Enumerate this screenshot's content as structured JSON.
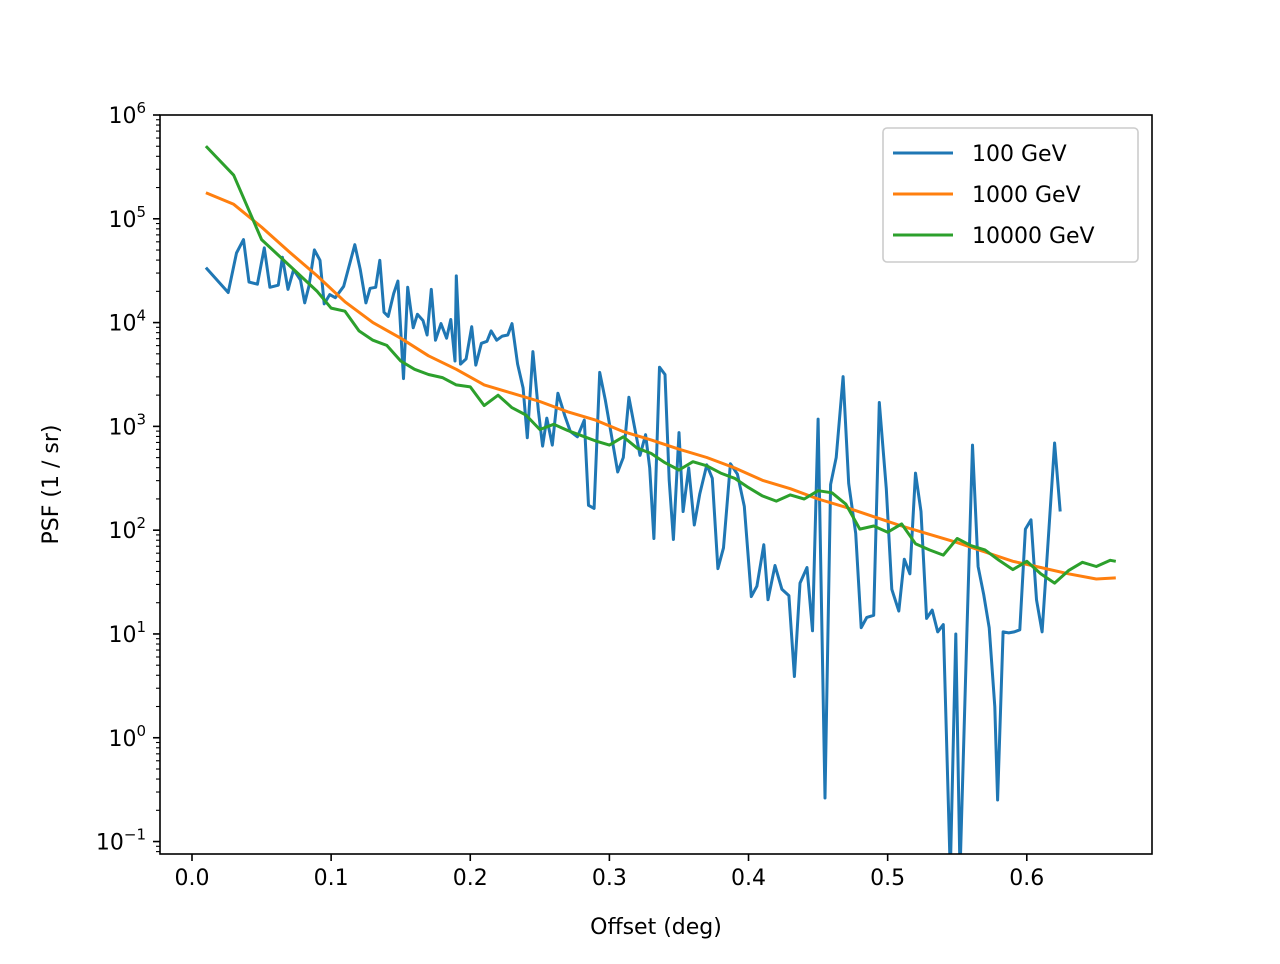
{
  "chart_data": {
    "type": "line",
    "title": "",
    "xlabel": "Offset (deg)",
    "ylabel": "PSF (1 / sr)",
    "xlim": [
      -0.023,
      0.69
    ],
    "ylim_log10": [
      -1.12,
      6.0
    ],
    "yscale": "log",
    "grid": false,
    "legend": "top-right",
    "x_ticks": [
      {
        "value": 0.0,
        "label": "0.0"
      },
      {
        "value": 0.1,
        "label": "0.1"
      },
      {
        "value": 0.2,
        "label": "0.2"
      },
      {
        "value": 0.3,
        "label": "0.3"
      },
      {
        "value": 0.4,
        "label": "0.4"
      },
      {
        "value": 0.5,
        "label": "0.5"
      },
      {
        "value": 0.6,
        "label": "0.6"
      }
    ],
    "y_ticks": [
      {
        "exp": 6,
        "base": "10",
        "sup": "6"
      },
      {
        "exp": 5,
        "base": "10",
        "sup": "5"
      },
      {
        "exp": 4,
        "base": "10",
        "sup": "4"
      },
      {
        "exp": 3,
        "base": "10",
        "sup": "3"
      },
      {
        "exp": 2,
        "base": "10",
        "sup": "2"
      },
      {
        "exp": 1,
        "base": "10",
        "sup": "1"
      },
      {
        "exp": 0,
        "base": "10",
        "sup": "0"
      },
      {
        "exp": -1,
        "base": "10",
        "sup": "−1"
      }
    ],
    "series": [
      {
        "name": "100 GeV",
        "color": "#1f77b4",
        "points": [
          [
            0.01,
            4.53
          ],
          [
            0.026,
            4.29
          ],
          [
            0.032,
            4.67
          ],
          [
            0.037,
            4.8
          ],
          [
            0.041,
            4.39
          ],
          [
            0.047,
            4.37
          ],
          [
            0.052,
            4.72
          ],
          [
            0.056,
            4.34
          ],
          [
            0.062,
            4.36
          ],
          [
            0.065,
            4.63
          ],
          [
            0.069,
            4.32
          ],
          [
            0.073,
            4.51
          ],
          [
            0.078,
            4.41
          ],
          [
            0.081,
            4.19
          ],
          [
            0.084,
            4.35
          ],
          [
            0.088,
            4.7
          ],
          [
            0.092,
            4.6
          ],
          [
            0.095,
            4.18
          ],
          [
            0.099,
            4.27
          ],
          [
            0.103,
            4.24
          ],
          [
            0.109,
            4.35
          ],
          [
            0.117,
            4.75
          ],
          [
            0.121,
            4.51
          ],
          [
            0.125,
            4.19
          ],
          [
            0.128,
            4.33
          ],
          [
            0.132,
            4.34
          ],
          [
            0.135,
            4.6
          ],
          [
            0.138,
            4.1
          ],
          [
            0.141,
            4.06
          ],
          [
            0.145,
            4.28
          ],
          [
            0.148,
            4.4
          ],
          [
            0.152,
            3.46
          ],
          [
            0.155,
            4.34
          ],
          [
            0.159,
            3.95
          ],
          [
            0.162,
            4.08
          ],
          [
            0.166,
            4.02
          ],
          [
            0.169,
            3.88
          ],
          [
            0.172,
            4.32
          ],
          [
            0.175,
            3.83
          ],
          [
            0.179,
            3.99
          ],
          [
            0.183,
            3.85
          ],
          [
            0.186,
            4.03
          ],
          [
            0.189,
            3.63
          ],
          [
            0.19,
            4.45
          ],
          [
            0.193,
            3.6
          ],
          [
            0.197,
            3.65
          ],
          [
            0.201,
            3.96
          ],
          [
            0.204,
            3.59
          ],
          [
            0.208,
            3.8
          ],
          [
            0.212,
            3.82
          ],
          [
            0.215,
            3.92
          ],
          [
            0.219,
            3.83
          ],
          [
            0.223,
            3.87
          ],
          [
            0.227,
            3.88
          ],
          [
            0.23,
            3.99
          ],
          [
            0.234,
            3.6
          ],
          [
            0.238,
            3.37
          ],
          [
            0.241,
            2.89
          ],
          [
            0.245,
            3.72
          ],
          [
            0.249,
            3.15
          ],
          [
            0.252,
            2.81
          ],
          [
            0.255,
            3.08
          ],
          [
            0.259,
            2.82
          ],
          [
            0.263,
            3.32
          ],
          [
            0.268,
            3.1
          ],
          [
            0.272,
            2.95
          ],
          [
            0.277,
            2.9
          ],
          [
            0.282,
            3.06
          ],
          [
            0.285,
            2.24
          ],
          [
            0.289,
            2.21
          ],
          [
            0.293,
            3.52
          ],
          [
            0.297,
            3.26
          ],
          [
            0.301,
            2.95
          ],
          [
            0.306,
            2.56
          ],
          [
            0.31,
            2.7
          ],
          [
            0.314,
            3.28
          ],
          [
            0.318,
            3.0
          ],
          [
            0.322,
            2.72
          ],
          [
            0.326,
            2.92
          ],
          [
            0.329,
            2.6
          ],
          [
            0.332,
            1.92
          ],
          [
            0.336,
            3.57
          ],
          [
            0.34,
            3.5
          ],
          [
            0.343,
            2.48
          ],
          [
            0.346,
            1.91
          ],
          [
            0.35,
            2.94
          ],
          [
            0.353,
            2.18
          ],
          [
            0.357,
            2.6
          ],
          [
            0.361,
            2.05
          ],
          [
            0.365,
            2.35
          ],
          [
            0.37,
            2.63
          ],
          [
            0.374,
            2.5
          ],
          [
            0.378,
            1.63
          ],
          [
            0.382,
            1.83
          ],
          [
            0.387,
            2.64
          ],
          [
            0.392,
            2.54
          ],
          [
            0.397,
            2.23
          ],
          [
            0.402,
            1.36
          ],
          [
            0.406,
            1.46
          ],
          [
            0.411,
            1.86
          ],
          [
            0.414,
            1.33
          ],
          [
            0.419,
            1.66
          ],
          [
            0.424,
            1.43
          ],
          [
            0.429,
            1.37
          ],
          [
            0.433,
            0.59
          ],
          [
            0.437,
            1.49
          ],
          [
            0.442,
            1.64
          ],
          [
            0.446,
            1.03
          ],
          [
            0.45,
            3.07
          ],
          [
            0.455,
            -0.58
          ],
          [
            0.459,
            2.44
          ],
          [
            0.463,
            2.7
          ],
          [
            0.468,
            3.48
          ],
          [
            0.472,
            2.45
          ],
          [
            0.477,
            1.97
          ],
          [
            0.481,
            1.06
          ],
          [
            0.485,
            1.16
          ],
          [
            0.49,
            1.18
          ],
          [
            0.494,
            3.23
          ],
          [
            0.499,
            2.4
          ],
          [
            0.503,
            1.43
          ],
          [
            0.508,
            1.22
          ],
          [
            0.512,
            1.72
          ],
          [
            0.516,
            1.58
          ],
          [
            0.52,
            2.55
          ],
          [
            0.524,
            2.18
          ],
          [
            0.528,
            1.15
          ],
          [
            0.532,
            1.23
          ],
          [
            0.536,
            1.02
          ],
          [
            0.54,
            1.09
          ],
          [
            0.545,
            -1.3
          ],
          [
            0.549,
            1.0
          ],
          [
            0.552,
            -1.3
          ],
          [
            0.557,
            1.05
          ],
          [
            0.561,
            2.82
          ],
          [
            0.565,
            1.65
          ],
          [
            0.569,
            1.38
          ],
          [
            0.573,
            1.06
          ],
          [
            0.577,
            0.3
          ],
          [
            0.579,
            -0.6
          ],
          [
            0.583,
            1.02
          ],
          [
            0.587,
            1.01
          ],
          [
            0.591,
            1.02
          ],
          [
            0.595,
            1.04
          ],
          [
            0.599,
            2.01
          ],
          [
            0.603,
            2.1
          ],
          [
            0.607,
            1.33
          ],
          [
            0.611,
            1.02
          ],
          [
            0.615,
            1.83
          ],
          [
            0.62,
            2.84
          ],
          [
            0.624,
            2.18
          ]
        ]
      },
      {
        "name": "1000 GeV",
        "color": "#ff7f0e",
        "points": [
          [
            0.01,
            5.25
          ],
          [
            0.03,
            5.14
          ],
          [
            0.05,
            4.92
          ],
          [
            0.07,
            4.68
          ],
          [
            0.09,
            4.45
          ],
          [
            0.11,
            4.2
          ],
          [
            0.13,
            4.0
          ],
          [
            0.15,
            3.85
          ],
          [
            0.17,
            3.68
          ],
          [
            0.19,
            3.55
          ],
          [
            0.21,
            3.4
          ],
          [
            0.23,
            3.32
          ],
          [
            0.25,
            3.24
          ],
          [
            0.27,
            3.14
          ],
          [
            0.29,
            3.06
          ],
          [
            0.31,
            2.95
          ],
          [
            0.33,
            2.87
          ],
          [
            0.35,
            2.78
          ],
          [
            0.37,
            2.7
          ],
          [
            0.39,
            2.6
          ],
          [
            0.41,
            2.48
          ],
          [
            0.43,
            2.4
          ],
          [
            0.45,
            2.3
          ],
          [
            0.47,
            2.22
          ],
          [
            0.49,
            2.13
          ],
          [
            0.51,
            2.04
          ],
          [
            0.53,
            1.96
          ],
          [
            0.55,
            1.88
          ],
          [
            0.57,
            1.79
          ],
          [
            0.59,
            1.7
          ],
          [
            0.61,
            1.64
          ],
          [
            0.63,
            1.58
          ],
          [
            0.65,
            1.53
          ],
          [
            0.664,
            1.54
          ]
        ]
      },
      {
        "name": "10000 GeV",
        "color": "#2ca02c",
        "points": [
          [
            0.01,
            5.7
          ],
          [
            0.03,
            5.42
          ],
          [
            0.05,
            4.8
          ],
          [
            0.07,
            4.55
          ],
          [
            0.09,
            4.3
          ],
          [
            0.1,
            4.14
          ],
          [
            0.11,
            4.11
          ],
          [
            0.12,
            3.92
          ],
          [
            0.13,
            3.83
          ],
          [
            0.14,
            3.78
          ],
          [
            0.15,
            3.63
          ],
          [
            0.16,
            3.55
          ],
          [
            0.17,
            3.5
          ],
          [
            0.18,
            3.47
          ],
          [
            0.19,
            3.4
          ],
          [
            0.2,
            3.38
          ],
          [
            0.21,
            3.2
          ],
          [
            0.22,
            3.3
          ],
          [
            0.23,
            3.18
          ],
          [
            0.24,
            3.11
          ],
          [
            0.25,
            2.97
          ],
          [
            0.26,
            3.02
          ],
          [
            0.27,
            2.96
          ],
          [
            0.28,
            2.91
          ],
          [
            0.29,
            2.86
          ],
          [
            0.3,
            2.82
          ],
          [
            0.31,
            2.9
          ],
          [
            0.32,
            2.79
          ],
          [
            0.33,
            2.74
          ],
          [
            0.34,
            2.65
          ],
          [
            0.35,
            2.58
          ],
          [
            0.36,
            2.66
          ],
          [
            0.37,
            2.62
          ],
          [
            0.38,
            2.55
          ],
          [
            0.39,
            2.5
          ],
          [
            0.4,
            2.41
          ],
          [
            0.41,
            2.33
          ],
          [
            0.42,
            2.28
          ],
          [
            0.43,
            2.34
          ],
          [
            0.44,
            2.3
          ],
          [
            0.45,
            2.38
          ],
          [
            0.46,
            2.36
          ],
          [
            0.47,
            2.25
          ],
          [
            0.48,
            2.01
          ],
          [
            0.49,
            2.04
          ],
          [
            0.5,
            1.98
          ],
          [
            0.51,
            2.06
          ],
          [
            0.52,
            1.87
          ],
          [
            0.53,
            1.81
          ],
          [
            0.54,
            1.76
          ],
          [
            0.55,
            1.92
          ],
          [
            0.56,
            1.85
          ],
          [
            0.57,
            1.81
          ],
          [
            0.58,
            1.71
          ],
          [
            0.59,
            1.62
          ],
          [
            0.6,
            1.7
          ],
          [
            0.61,
            1.58
          ],
          [
            0.62,
            1.49
          ],
          [
            0.63,
            1.61
          ],
          [
            0.64,
            1.69
          ],
          [
            0.65,
            1.65
          ],
          [
            0.66,
            1.71
          ],
          [
            0.664,
            1.7
          ]
        ]
      }
    ]
  }
}
